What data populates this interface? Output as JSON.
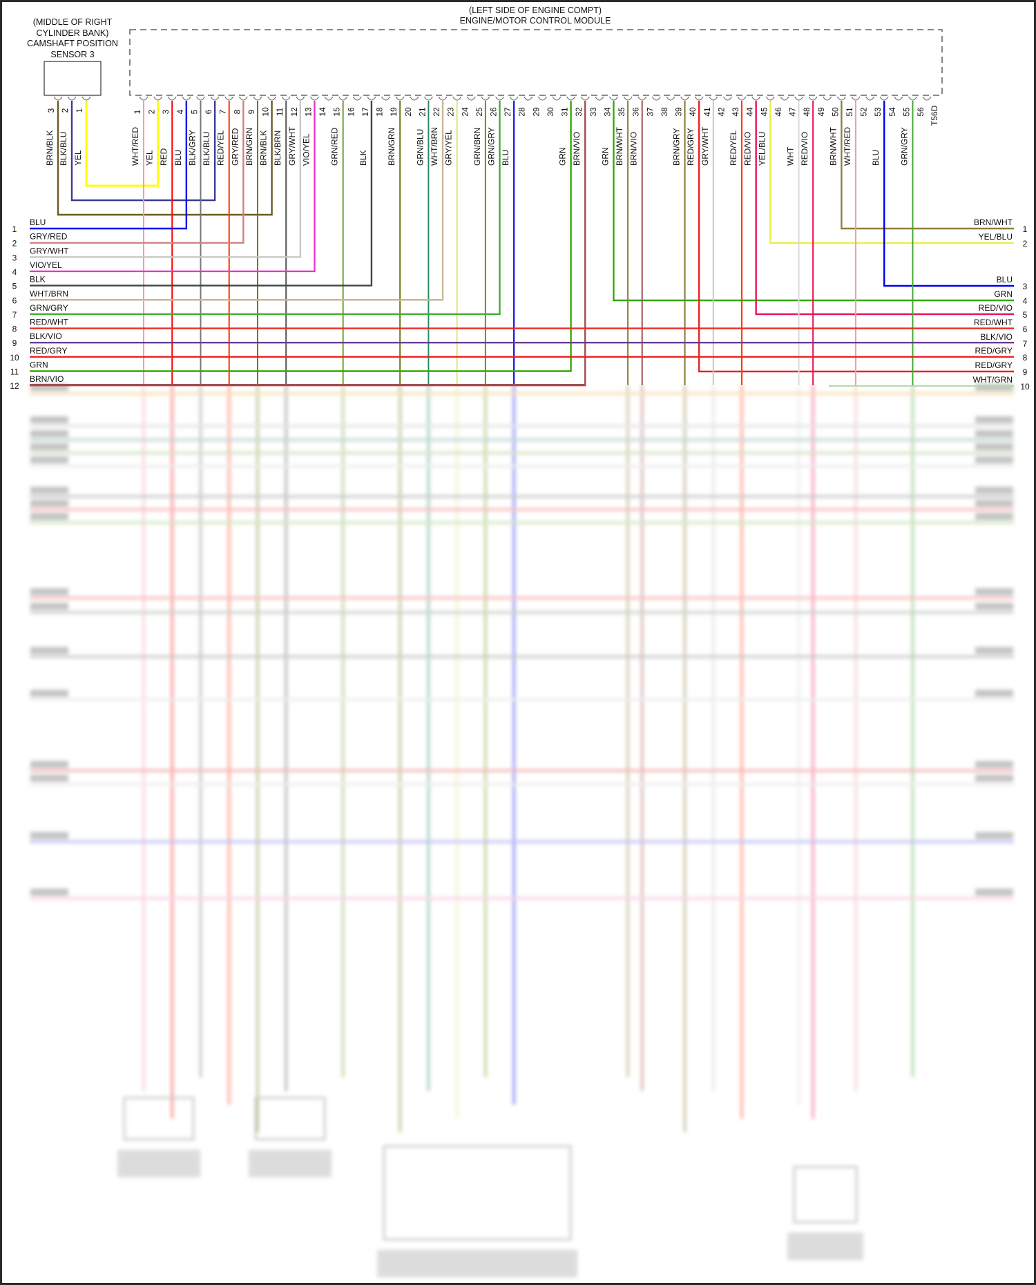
{
  "sensor": {
    "title_lines": [
      "(MIDDLE OF RIGHT",
      "CYLINDER BANK)",
      "CAMSHAFT POSITION",
      "SENSOR 3"
    ],
    "pins": [
      {
        "num": "3",
        "wire": "BRN/BLK",
        "to_ecm": 10
      },
      {
        "num": "2",
        "wire": "BLK/BLU",
        "to_ecm": 6
      },
      {
        "num": "1",
        "wire": "YEL",
        "to_ecm": 2
      }
    ]
  },
  "ecm": {
    "title_lines": [
      "(LEFT SIDE OF ENGINE COMPT)",
      "ENGINE/MOTOR CONTROL MODULE"
    ],
    "connector": "T56D",
    "pins": [
      {
        "num": "1",
        "wire": "WHT/RED",
        "to": "down"
      },
      {
        "num": "2",
        "wire": "YEL",
        "to": "sensor"
      },
      {
        "num": "3",
        "wire": "RED",
        "to": "down"
      },
      {
        "num": "4",
        "wire": "BLU",
        "to": "L1"
      },
      {
        "num": "5",
        "wire": "BLK/GRY",
        "to": "down"
      },
      {
        "num": "6",
        "wire": "BLK/BLU",
        "to": "sensor"
      },
      {
        "num": "7",
        "wire": "RED/YEL",
        "to": "down"
      },
      {
        "num": "8",
        "wire": "GRY/RED",
        "to": "L2"
      },
      {
        "num": "9",
        "wire": "BRN/GRN",
        "to": "down"
      },
      {
        "num": "10",
        "wire": "BRN/BLK",
        "to": "sensor"
      },
      {
        "num": "11",
        "wire": "BLK/BRN",
        "to": "down"
      },
      {
        "num": "12",
        "wire": "GRY/WHT",
        "to": "L3"
      },
      {
        "num": "13",
        "wire": "VIO/YEL",
        "to": "L4"
      },
      {
        "num": "14",
        "wire": "",
        "to": ""
      },
      {
        "num": "15",
        "wire": "GRN/RED",
        "to": "down"
      },
      {
        "num": "16",
        "wire": "",
        "to": ""
      },
      {
        "num": "17",
        "wire": "BLK",
        "to": "L5"
      },
      {
        "num": "18",
        "wire": "",
        "to": ""
      },
      {
        "num": "19",
        "wire": "BRN/GRN",
        "to": "down"
      },
      {
        "num": "20",
        "wire": "",
        "to": ""
      },
      {
        "num": "21",
        "wire": "GRN/BLU",
        "to": "down"
      },
      {
        "num": "22",
        "wire": "WHT/BRN",
        "to": "L6"
      },
      {
        "num": "23",
        "wire": "GRY/YEL",
        "to": "down"
      },
      {
        "num": "24",
        "wire": "",
        "to": ""
      },
      {
        "num": "25",
        "wire": "GRN/BRN",
        "to": "down"
      },
      {
        "num": "26",
        "wire": "GRN/GRY",
        "to": "L7"
      },
      {
        "num": "27",
        "wire": "BLU",
        "to": "down"
      },
      {
        "num": "28",
        "wire": "",
        "to": ""
      },
      {
        "num": "29",
        "wire": "",
        "to": ""
      },
      {
        "num": "30",
        "wire": "",
        "to": ""
      },
      {
        "num": "31",
        "wire": "GRN",
        "to": "L11"
      },
      {
        "num": "32",
        "wire": "BRN/VIO",
        "to": "L12"
      },
      {
        "num": "33",
        "wire": "",
        "to": ""
      },
      {
        "num": "34",
        "wire": "GRN",
        "to": "R4"
      },
      {
        "num": "35",
        "wire": "BRN/WHT",
        "to": "down"
      },
      {
        "num": "36",
        "wire": "BRN/VIO",
        "to": "down"
      },
      {
        "num": "37",
        "wire": "",
        "to": ""
      },
      {
        "num": "38",
        "wire": "",
        "to": ""
      },
      {
        "num": "39",
        "wire": "BRN/GRY",
        "to": "down"
      },
      {
        "num": "40",
        "wire": "RED/GRY",
        "to": "R9"
      },
      {
        "num": "41",
        "wire": "GRY/WHT",
        "to": "down"
      },
      {
        "num": "42",
        "wire": "",
        "to": ""
      },
      {
        "num": "43",
        "wire": "RED/YEL",
        "to": "down"
      },
      {
        "num": "44",
        "wire": "RED/VIO",
        "to": "R5"
      },
      {
        "num": "45",
        "wire": "YEL/BLU",
        "to": "R2"
      },
      {
        "num": "46",
        "wire": "",
        "to": ""
      },
      {
        "num": "47",
        "wire": "WHT",
        "to": "down"
      },
      {
        "num": "48",
        "wire": "RED/VIO",
        "to": "down"
      },
      {
        "num": "49",
        "wire": "",
        "to": ""
      },
      {
        "num": "50",
        "wire": "BRN/WHT",
        "to": "R1"
      },
      {
        "num": "51",
        "wire": "WHT/RED",
        "to": "down"
      },
      {
        "num": "52",
        "wire": "",
        "to": ""
      },
      {
        "num": "53",
        "wire": "BLU",
        "to": "R3"
      },
      {
        "num": "54",
        "wire": "",
        "to": ""
      },
      {
        "num": "55",
        "wire": "GRN/GRY",
        "to": "down"
      },
      {
        "num": "56",
        "wire": "",
        "to": ""
      }
    ]
  },
  "left_connector": {
    "rows": [
      {
        "num": "1",
        "wire": "BLU"
      },
      {
        "num": "2",
        "wire": "GRY/RED"
      },
      {
        "num": "3",
        "wire": "GRY/WHT"
      },
      {
        "num": "4",
        "wire": "VIO/YEL"
      },
      {
        "num": "5",
        "wire": "BLK"
      },
      {
        "num": "6",
        "wire": "WHT/BRN"
      },
      {
        "num": "7",
        "wire": "GRN/GRY"
      },
      {
        "num": "8",
        "wire": "RED/WHT",
        "through_to": "R6"
      },
      {
        "num": "9",
        "wire": "BLK/VIO",
        "through_to": "R7"
      },
      {
        "num": "10",
        "wire": "RED/GRY",
        "through_to": "R8"
      },
      {
        "num": "11",
        "wire": "GRN"
      },
      {
        "num": "12",
        "wire": "BRN/VIO"
      }
    ]
  },
  "right_connector": {
    "rows": [
      {
        "num": "1",
        "wire": "BRN/WHT"
      },
      {
        "num": "2",
        "wire": "YEL/BLU"
      },
      {
        "num": "3",
        "wire": "BLU"
      },
      {
        "num": "4",
        "wire": "GRN"
      },
      {
        "num": "5",
        "wire": "RED/VIO"
      },
      {
        "num": "6",
        "wire": "RED/WHT"
      },
      {
        "num": "7",
        "wire": "BLK/VIO"
      },
      {
        "num": "8",
        "wire": "RED/GRY"
      },
      {
        "num": "9",
        "wire": "RED/GRY"
      },
      {
        "num": "10",
        "wire": "WHT/GRN"
      }
    ]
  },
  "wire_colors": {
    "WHT/RED": "#f0a0a0",
    "YEL": "#ffff00",
    "RED": "#ff0000",
    "BLU": "#0000ee",
    "BLK/GRY": "#777777",
    "BLK/BLU": "#3a3a99",
    "RED/YEL": "#ff3300",
    "GRY/RED": "#d68080",
    "BRN/GRN": "#6e7a12",
    "BRN/BLK": "#6b5a22",
    "BLK/BRN": "#555555",
    "GRY/WHT": "#c8c8c8",
    "VIO/YEL": "#ee33cc",
    "GRN/RED": "#6fa030",
    "BLK": "#444444",
    "GRN/BLU": "#2a8a60",
    "WHT/BRN": "#c8b890",
    "GRY/YEL": "#e2e28a",
    "GRN/BRN": "#5f9a00",
    "GRN/GRY": "#44aa33",
    "GRN": "#33aa00",
    "BRN/VIO": "#a05050",
    "BRN/WHT": "#8f7f3a",
    "BRN/GRY": "#857530",
    "RED/GRY": "#ee2222",
    "RED/VIO": "#ee1155",
    "YEL/BLU": "#eeee44",
    "WHT": "#d8d8d8",
    "RED/WHT": "#ee2a2a",
    "BLK/VIO": "#6a3a8a",
    "WHT/GRN": "#b8d8a8"
  },
  "frame_color": "#2a2a2a"
}
